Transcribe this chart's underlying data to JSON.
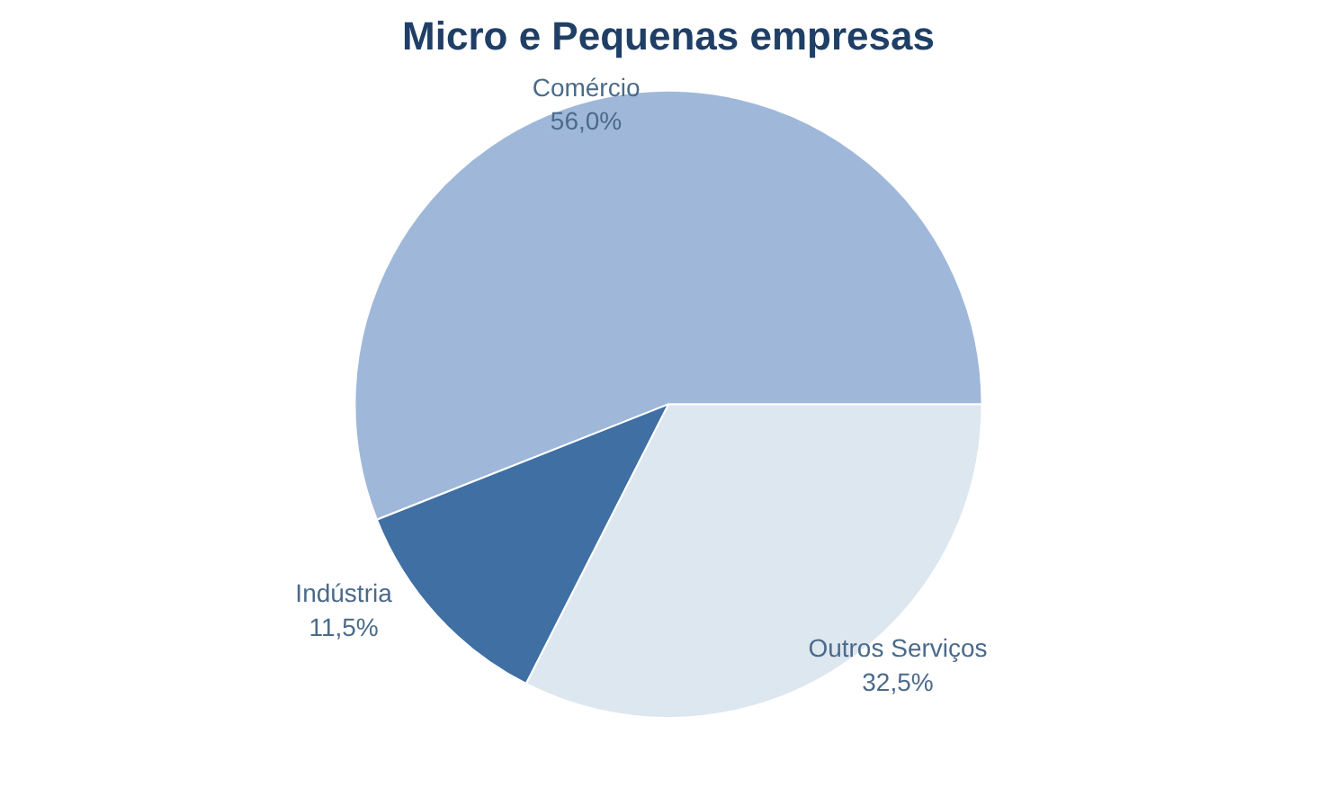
{
  "chart_data": {
    "type": "pie",
    "title": "Micro e Pequenas empresas",
    "categories": [
      "Comércio",
      "Outros Serviços",
      "Indústria"
    ],
    "values": [
      56.0,
      32.5,
      11.5
    ],
    "value_labels": [
      "56,0%",
      "32,5%",
      "11,5%"
    ],
    "colors": [
      "#9fb8da",
      "#dde7f0",
      "#3f6fa3"
    ]
  }
}
